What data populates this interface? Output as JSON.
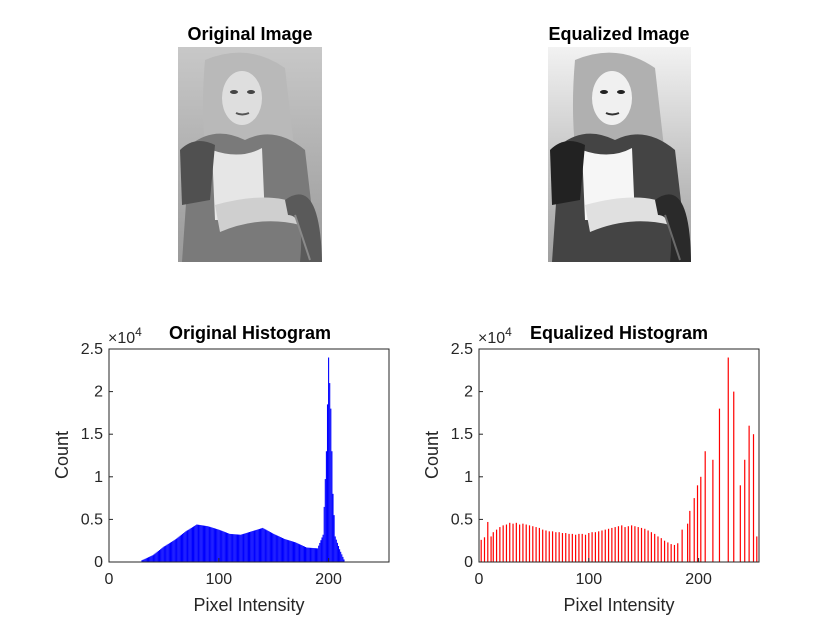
{
  "images": {
    "original": {
      "title": "Original Image"
    },
    "equalized": {
      "title": "Equalized Image"
    }
  },
  "chart_data": [
    {
      "type": "bar",
      "title": "Original Histogram",
      "xlabel": "Pixel Intensity",
      "ylabel": "Count",
      "exponent_label": "×10",
      "exponent": "4",
      "xlim": [
        0,
        255
      ],
      "ylim": [
        0,
        25000
      ],
      "xticks": [
        0,
        100,
        200
      ],
      "yticks": [
        0,
        5000,
        10000,
        15000,
        20000,
        25000
      ],
      "ytick_labels": [
        "0",
        "0.5",
        "1",
        "1.5",
        "2",
        "2.5"
      ],
      "color": "#0000ff",
      "grid": false,
      "series": [
        {
          "x": [
            30,
            40,
            50,
            60,
            70,
            80,
            90,
            100,
            110,
            120,
            130,
            140,
            150,
            160,
            170,
            180,
            190,
            195,
            198,
            200,
            202,
            204,
            206,
            210,
            215
          ],
          "values": [
            200,
            800,
            1800,
            2600,
            3600,
            4400,
            4200,
            3800,
            3300,
            3200,
            3600,
            4000,
            3300,
            2700,
            2300,
            1700,
            1600,
            3200,
            13000,
            24000,
            18000,
            8000,
            3000,
            1500,
            0
          ]
        }
      ]
    },
    {
      "type": "bar",
      "title": "Equalized Histogram",
      "xlabel": "Pixel Intensity",
      "ylabel": "Count",
      "exponent_label": "×10",
      "exponent": "4",
      "xlim": [
        0,
        255
      ],
      "ylim": [
        0,
        25000
      ],
      "xticks": [
        0,
        100,
        200
      ],
      "yticks": [
        0,
        5000,
        10000,
        15000,
        20000,
        25000
      ],
      "ytick_labels": [
        "0",
        "0.5",
        "1",
        "1.5",
        "2",
        "2.5"
      ],
      "color": "#ff0000",
      "grid": false,
      "series": [
        {
          "x": [
            2,
            5,
            8,
            11,
            13,
            16,
            19,
            22,
            25,
            28,
            31,
            34,
            37,
            40,
            43,
            46,
            49,
            52,
            55,
            58,
            61,
            64,
            67,
            70,
            73,
            76,
            79,
            82,
            85,
            88,
            91,
            94,
            97,
            100,
            103,
            106,
            109,
            112,
            115,
            118,
            121,
            124,
            127,
            130,
            133,
            136,
            139,
            142,
            145,
            148,
            151,
            154,
            157,
            160,
            163,
            166,
            169,
            172,
            175,
            178,
            181,
            185,
            190,
            192,
            196,
            199,
            202,
            206,
            213,
            219,
            227,
            232,
            238,
            242,
            246,
            250,
            253
          ],
          "values": [
            2600,
            2900,
            4700,
            3000,
            3500,
            3800,
            4100,
            4300,
            4400,
            4600,
            4500,
            4600,
            4400,
            4500,
            4400,
            4300,
            4200,
            4100,
            4000,
            3800,
            3700,
            3600,
            3600,
            3500,
            3500,
            3400,
            3400,
            3300,
            3300,
            3200,
            3300,
            3300,
            3200,
            3400,
            3500,
            3500,
            3600,
            3700,
            3800,
            3900,
            4000,
            4100,
            4200,
            4300,
            4100,
            4200,
            4300,
            4200,
            4100,
            4000,
            3900,
            3700,
            3500,
            3300,
            3000,
            2800,
            2500,
            2300,
            2100,
            2000,
            2200,
            3800,
            4500,
            6000,
            7500,
            9000,
            10000,
            13000,
            12000,
            18000,
            24000,
            20000,
            9000,
            12000,
            16000,
            15000,
            3000
          ]
        }
      ]
    }
  ]
}
